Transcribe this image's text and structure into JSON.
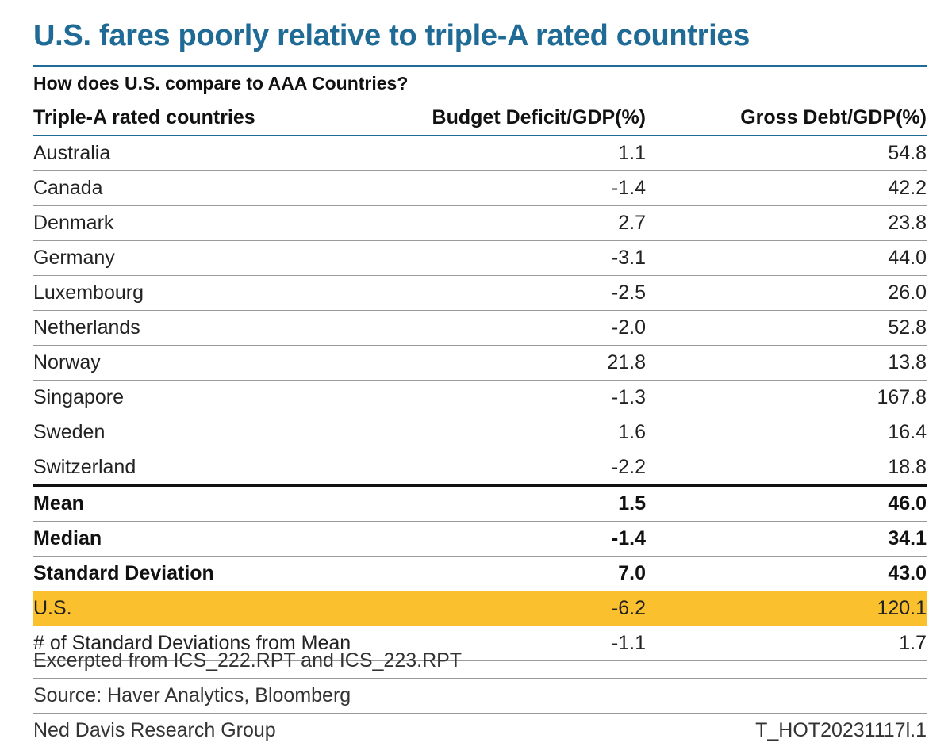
{
  "chart_data": {
    "type": "table",
    "title": "U.S. fares poorly relative to triple-A rated countries",
    "subtitle": "How does U.S. compare to AAA Countries?",
    "columns": [
      "Triple-A rated countries",
      "Budget Deficit/GDP(%)",
      "Gross Debt/GDP(%)"
    ],
    "rows": [
      {
        "country": "Australia",
        "deficit": "1.1",
        "debt": "54.8"
      },
      {
        "country": "Canada",
        "deficit": "-1.4",
        "debt": "42.2"
      },
      {
        "country": "Denmark",
        "deficit": "2.7",
        "debt": "23.8"
      },
      {
        "country": "Germany",
        "deficit": "-3.1",
        "debt": "44.0"
      },
      {
        "country": "Luxembourg",
        "deficit": "-2.5",
        "debt": "26.0"
      },
      {
        "country": "Netherlands",
        "deficit": "-2.0",
        "debt": "52.8"
      },
      {
        "country": "Norway",
        "deficit": "21.8",
        "debt": "13.8"
      },
      {
        "country": "Singapore",
        "deficit": "-1.3",
        "debt": "167.8"
      },
      {
        "country": "Sweden",
        "deficit": "1.6",
        "debt": "16.4"
      },
      {
        "country": "Switzerland",
        "deficit": "-2.2",
        "debt": "18.8"
      }
    ],
    "stats": [
      {
        "label": "Mean",
        "deficit": "1.5",
        "debt": "46.0"
      },
      {
        "label": "Median",
        "deficit": "-1.4",
        "debt": "34.1"
      },
      {
        "label": "Standard Deviation",
        "deficit": "7.0",
        "debt": "43.0"
      }
    ],
    "us": {
      "label": "U.S.",
      "deficit": "-6.2",
      "debt": "120.1",
      "highlight_color": "#fbc02d"
    },
    "sd_from_mean": {
      "label": "# of Standard Deviations from Mean",
      "deficit": "-1.1",
      "debt": "1.7"
    }
  },
  "footer": {
    "excerpt": "Excerpted from ICS_222.RPT and ICS_223.RPT",
    "source": "Source: Haver Analytics, Bloomberg",
    "publisher": "Ned Davis Research Group",
    "code": "T_HOT20231117l.1"
  },
  "colors": {
    "accent": "#1f6b96",
    "highlight": "#fbc02d"
  }
}
